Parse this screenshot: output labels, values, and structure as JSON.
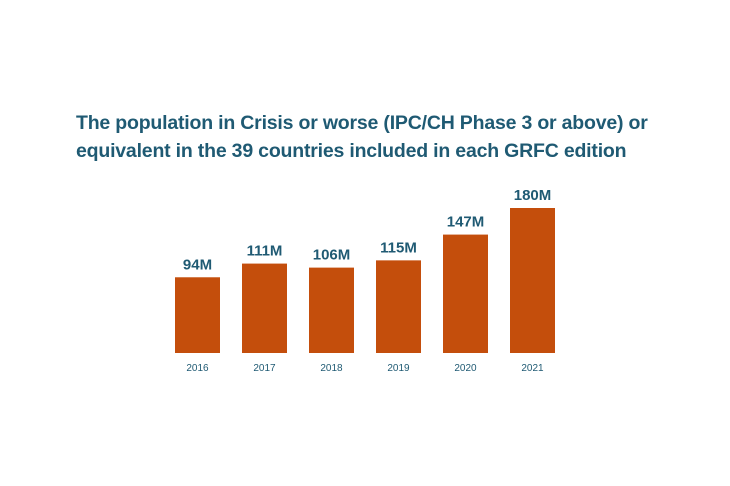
{
  "chart_data": {
    "type": "bar",
    "title": "The population in Crisis or worse (IPC/CH Phase 3 or above) or equivalent in the 39 countries included in each GRFC edition",
    "categories": [
      "2016",
      "2017",
      "2018",
      "2019",
      "2020",
      "2021"
    ],
    "values": [
      94,
      111,
      106,
      115,
      147,
      180
    ],
    "data_labels": [
      "94M",
      "111M",
      "106M",
      "115M",
      "147M",
      "180M"
    ],
    "unit": "M",
    "xlabel": "",
    "ylabel": "",
    "ylim": [
      0,
      180
    ],
    "grid": false,
    "legend": "none",
    "colors": {
      "bar": "#c44e0c",
      "text": "#1f5a73"
    }
  }
}
